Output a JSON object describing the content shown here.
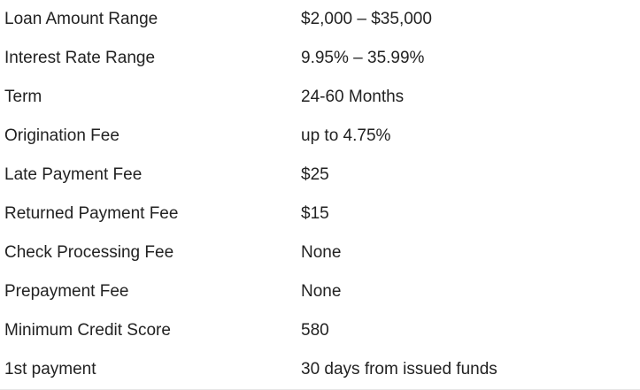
{
  "loan_details": {
    "rows": [
      {
        "label": "Loan Amount Range",
        "value": "$2,000 – $35,000"
      },
      {
        "label": "Interest Rate Range",
        "value": "9.95% – 35.99%"
      },
      {
        "label": "Term",
        "value": "24-60 Months"
      },
      {
        "label": "Origination Fee",
        "value": "up to 4.75%"
      },
      {
        "label": "Late Payment Fee",
        "value": "$25"
      },
      {
        "label": "Returned Payment Fee",
        "value": "$15"
      },
      {
        "label": "Check Processing Fee",
        "value": "None"
      },
      {
        "label": "Prepayment Fee",
        "value": "None"
      },
      {
        "label": "Minimum Credit Score",
        "value": "580"
      },
      {
        "label": "1st payment",
        "value": "30 days from issued funds"
      }
    ]
  }
}
